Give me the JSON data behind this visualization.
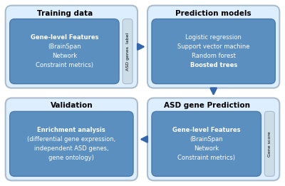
{
  "bg_color": "#ffffff",
  "outer_box_color": "#ddeeff",
  "outer_edge_color": "#aabccc",
  "inner_box_color": "#5b8fc0",
  "inner_edge_color": "#4a7aaa",
  "side_box_color": "#ccdde8",
  "side_edge_color": "#aabccc",
  "arrow_color": "#3366aa",
  "title_color": "#000000",
  "inner_text_color": "#ffffff",
  "side_text_color": "#333333",
  "boxes": [
    {
      "id": "training",
      "col": 0,
      "row": 0,
      "title": "Training data",
      "inner_lines": [
        "Gene-level Features",
        "(BrainSpan",
        "Network",
        "Constraint metrics)"
      ],
      "inner_bold": [
        true,
        false,
        false,
        false
      ],
      "side_label": "ASD genes  label",
      "side_label_pos": "right"
    },
    {
      "id": "prediction_models",
      "col": 1,
      "row": 0,
      "title": "Prediction models",
      "inner_lines": [
        "Logistic regression",
        "Support vector machine",
        "Random forest",
        "Boosted trees"
      ],
      "inner_bold": [
        false,
        false,
        false,
        true
      ],
      "side_label": null,
      "side_label_pos": null
    },
    {
      "id": "asd_prediction",
      "col": 1,
      "row": 1,
      "title": "ASD gene Prediction",
      "inner_lines": [
        "Gene-level Features",
        "(BrainSpan",
        "Network",
        "Constraint metrics)"
      ],
      "inner_bold": [
        true,
        false,
        false,
        false
      ],
      "side_label": "Gene score",
      "side_label_pos": "right"
    },
    {
      "id": "validation",
      "col": 0,
      "row": 1,
      "title": "Validation",
      "inner_lines": [
        "Enrichment analysis",
        "(differential gene expression,",
        "independent ASD genes,",
        "gene ontology)"
      ],
      "inner_bold": [
        true,
        false,
        false,
        false
      ],
      "side_label": null,
      "side_label_pos": null
    }
  ]
}
